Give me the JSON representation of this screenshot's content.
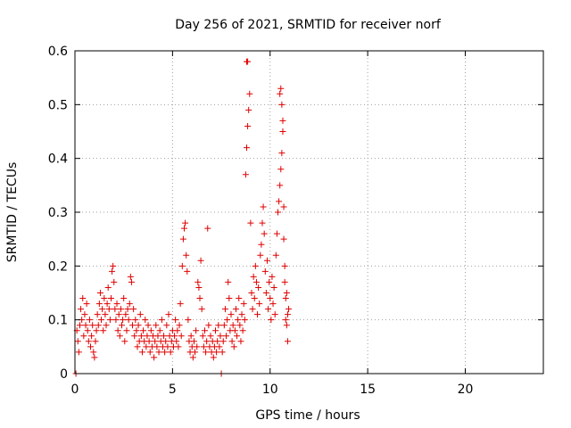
{
  "chart_data": {
    "type": "scatter",
    "title": "Day 256 of 2021, SRMTID for receiver norf",
    "xlabel": "GPS time / hours",
    "ylabel": "SRMTID / TECUs",
    "xlim": [
      0,
      24
    ],
    "ylim": [
      0,
      0.6
    ],
    "x_ticks": [
      0,
      5,
      10,
      15,
      20
    ],
    "x_tick_labels": [
      "0",
      "5",
      "10",
      "15",
      "20"
    ],
    "y_ticks": [
      0,
      0.1,
      0.2,
      0.3,
      0.4,
      0.5,
      0.6
    ],
    "y_tick_labels": [
      "0",
      "0.1",
      "0.2",
      "0.3",
      "0.4",
      "0.5",
      "0.6"
    ],
    "grid": true,
    "marker": "plus",
    "marker_color": "#e00000",
    "series": [
      {
        "name": "SRMTID",
        "points": [
          [
            0.05,
            0.0
          ],
          [
            0.1,
            0.08
          ],
          [
            0.15,
            0.06
          ],
          [
            0.2,
            0.04
          ],
          [
            0.25,
            0.09
          ],
          [
            0.3,
            0.12
          ],
          [
            0.35,
            0.1
          ],
          [
            0.4,
            0.14
          ],
          [
            0.45,
            0.07
          ],
          [
            0.5,
            0.11
          ],
          [
            0.55,
            0.09
          ],
          [
            0.6,
            0.13
          ],
          [
            0.65,
            0.08
          ],
          [
            0.7,
            0.06
          ],
          [
            0.75,
            0.1
          ],
          [
            0.8,
            0.05
          ],
          [
            0.85,
            0.07
          ],
          [
            0.9,
            0.09
          ],
          [
            0.95,
            0.04
          ],
          [
            1.0,
            0.03
          ],
          [
            1.05,
            0.06
          ],
          [
            1.1,
            0.08
          ],
          [
            1.15,
            0.11
          ],
          [
            1.2,
            0.09
          ],
          [
            1.25,
            0.13
          ],
          [
            1.3,
            0.15
          ],
          [
            1.35,
            0.1
          ],
          [
            1.4,
            0.12
          ],
          [
            1.45,
            0.08
          ],
          [
            1.5,
            0.14
          ],
          [
            1.55,
            0.11
          ],
          [
            1.6,
            0.09
          ],
          [
            1.65,
            0.13
          ],
          [
            1.7,
            0.16
          ],
          [
            1.75,
            0.12
          ],
          [
            1.8,
            0.1
          ],
          [
            1.85,
            0.14
          ],
          [
            1.9,
            0.19
          ],
          [
            1.95,
            0.2
          ],
          [
            2.0,
            0.17
          ],
          [
            2.05,
            0.12
          ],
          [
            2.1,
            0.1
          ],
          [
            2.15,
            0.13
          ],
          [
            2.2,
            0.08
          ],
          [
            2.25,
            0.11
          ],
          [
            2.3,
            0.07
          ],
          [
            2.35,
            0.12
          ],
          [
            2.4,
            0.09
          ],
          [
            2.45,
            0.1
          ],
          [
            2.5,
            0.14
          ],
          [
            2.55,
            0.06
          ],
          [
            2.6,
            0.11
          ],
          [
            2.65,
            0.08
          ],
          [
            2.7,
            0.12
          ],
          [
            2.75,
            0.1
          ],
          [
            2.8,
            0.13
          ],
          [
            2.85,
            0.18
          ],
          [
            2.9,
            0.17
          ],
          [
            2.95,
            0.09
          ],
          [
            3.0,
            0.12
          ],
          [
            3.05,
            0.07
          ],
          [
            3.1,
            0.1
          ],
          [
            3.15,
            0.08
          ],
          [
            3.2,
            0.05
          ],
          [
            3.25,
            0.09
          ],
          [
            3.3,
            0.06
          ],
          [
            3.35,
            0.11
          ],
          [
            3.4,
            0.07
          ],
          [
            3.45,
            0.04
          ],
          [
            3.5,
            0.08
          ],
          [
            3.55,
            0.06
          ],
          [
            3.6,
            0.1
          ],
          [
            3.65,
            0.05
          ],
          [
            3.7,
            0.07
          ],
          [
            3.75,
            0.09
          ],
          [
            3.8,
            0.06
          ],
          [
            3.85,
            0.04
          ],
          [
            3.9,
            0.08
          ],
          [
            3.95,
            0.05
          ],
          [
            4.0,
            0.07
          ],
          [
            4.05,
            0.03
          ],
          [
            4.1,
            0.06
          ],
          [
            4.15,
            0.09
          ],
          [
            4.2,
            0.05
          ],
          [
            4.25,
            0.07
          ],
          [
            4.3,
            0.04
          ],
          [
            4.35,
            0.08
          ],
          [
            4.4,
            0.06
          ],
          [
            4.45,
            0.1
          ],
          [
            4.5,
            0.05
          ],
          [
            4.55,
            0.07
          ],
          [
            4.6,
            0.04
          ],
          [
            4.65,
            0.06
          ],
          [
            4.7,
            0.09
          ],
          [
            4.75,
            0.05
          ],
          [
            4.8,
            0.11
          ],
          [
            4.85,
            0.07
          ],
          [
            4.9,
            0.04
          ],
          [
            4.95,
            0.06
          ],
          [
            5.0,
            0.08
          ],
          [
            5.05,
            0.05
          ],
          [
            5.1,
            0.07
          ],
          [
            5.15,
            0.1
          ],
          [
            5.2,
            0.06
          ],
          [
            5.25,
            0.08
          ],
          [
            5.3,
            0.05
          ],
          [
            5.35,
            0.09
          ],
          [
            5.4,
            0.13
          ],
          [
            5.45,
            0.07
          ],
          [
            5.5,
            0.2
          ],
          [
            5.55,
            0.25
          ],
          [
            5.6,
            0.27
          ],
          [
            5.65,
            0.28
          ],
          [
            5.7,
            0.22
          ],
          [
            5.75,
            0.19
          ],
          [
            5.8,
            0.1
          ],
          [
            5.85,
            0.06
          ],
          [
            5.9,
            0.04
          ],
          [
            5.95,
            0.07
          ],
          [
            6.0,
            0.05
          ],
          [
            6.05,
            0.03
          ],
          [
            6.1,
            0.06
          ],
          [
            6.15,
            0.04
          ],
          [
            6.2,
            0.08
          ],
          [
            6.25,
            0.05
          ],
          [
            6.3,
            0.17
          ],
          [
            6.35,
            0.16
          ],
          [
            6.4,
            0.14
          ],
          [
            6.45,
            0.21
          ],
          [
            6.5,
            0.12
          ],
          [
            6.55,
            0.07
          ],
          [
            6.6,
            0.05
          ],
          [
            6.65,
            0.08
          ],
          [
            6.7,
            0.04
          ],
          [
            6.75,
            0.06
          ],
          [
            6.8,
            0.27
          ],
          [
            6.85,
            0.09
          ],
          [
            6.9,
            0.05
          ],
          [
            6.95,
            0.07
          ],
          [
            7.0,
            0.04
          ],
          [
            7.05,
            0.06
          ],
          [
            7.1,
            0.03
          ],
          [
            7.15,
            0.05
          ],
          [
            7.2,
            0.08
          ],
          [
            7.25,
            0.04
          ],
          [
            7.3,
            0.06
          ],
          [
            7.35,
            0.09
          ],
          [
            7.4,
            0.05
          ],
          [
            7.45,
            0.07
          ],
          [
            7.5,
            0.0
          ],
          [
            7.55,
            0.04
          ],
          [
            7.6,
            0.06
          ],
          [
            7.65,
            0.09
          ],
          [
            7.7,
            0.12
          ],
          [
            7.75,
            0.07
          ],
          [
            7.8,
            0.1
          ],
          [
            7.85,
            0.17
          ],
          [
            7.9,
            0.14
          ],
          [
            7.95,
            0.08
          ],
          [
            8.0,
            0.11
          ],
          [
            8.05,
            0.06
          ],
          [
            8.1,
            0.09
          ],
          [
            8.15,
            0.05
          ],
          [
            8.2,
            0.08
          ],
          [
            8.25,
            0.12
          ],
          [
            8.3,
            0.07
          ],
          [
            8.35,
            0.1
          ],
          [
            8.4,
            0.14
          ],
          [
            8.45,
            0.09
          ],
          [
            8.5,
            0.06
          ],
          [
            8.55,
            0.11
          ],
          [
            8.6,
            0.08
          ],
          [
            8.65,
            0.13
          ],
          [
            8.7,
            0.1
          ],
          [
            8.75,
            0.37
          ],
          [
            8.8,
            0.42
          ],
          [
            8.85,
            0.46
          ],
          [
            8.9,
            0.49
          ],
          [
            8.95,
            0.52
          ],
          [
            9.0,
            0.28
          ],
          [
            8.8,
            0.58
          ],
          [
            8.85,
            0.58
          ],
          [
            9.05,
            0.15
          ],
          [
            9.1,
            0.12
          ],
          [
            9.15,
            0.18
          ],
          [
            9.2,
            0.14
          ],
          [
            9.25,
            0.2
          ],
          [
            9.3,
            0.17
          ],
          [
            9.35,
            0.11
          ],
          [
            9.4,
            0.16
          ],
          [
            9.45,
            0.13
          ],
          [
            9.5,
            0.22
          ],
          [
            9.55,
            0.24
          ],
          [
            9.6,
            0.28
          ],
          [
            9.65,
            0.31
          ],
          [
            9.7,
            0.26
          ],
          [
            9.75,
            0.19
          ],
          [
            9.8,
            0.15
          ],
          [
            9.85,
            0.21
          ],
          [
            9.9,
            0.12
          ],
          [
            9.95,
            0.17
          ],
          [
            10.0,
            0.14
          ],
          [
            10.05,
            0.1
          ],
          [
            10.1,
            0.18
          ],
          [
            10.15,
            0.13
          ],
          [
            10.2,
            0.16
          ],
          [
            10.25,
            0.11
          ],
          [
            10.3,
            0.22
          ],
          [
            10.35,
            0.26
          ],
          [
            10.4,
            0.3
          ],
          [
            10.45,
            0.32
          ],
          [
            10.5,
            0.35
          ],
          [
            10.55,
            0.38
          ],
          [
            10.6,
            0.41
          ],
          [
            10.65,
            0.45
          ],
          [
            10.5,
            0.52
          ],
          [
            10.55,
            0.53
          ],
          [
            10.6,
            0.5
          ],
          [
            10.65,
            0.47
          ],
          [
            10.7,
            0.31
          ],
          [
            10.7,
            0.25
          ],
          [
            10.75,
            0.2
          ],
          [
            10.8,
            0.14
          ],
          [
            10.85,
            0.09
          ],
          [
            10.9,
            0.06
          ],
          [
            10.95,
            0.12
          ],
          [
            10.75,
            0.17
          ],
          [
            10.8,
            0.1
          ],
          [
            10.85,
            0.15
          ],
          [
            10.9,
            0.11
          ]
        ]
      }
    ]
  }
}
